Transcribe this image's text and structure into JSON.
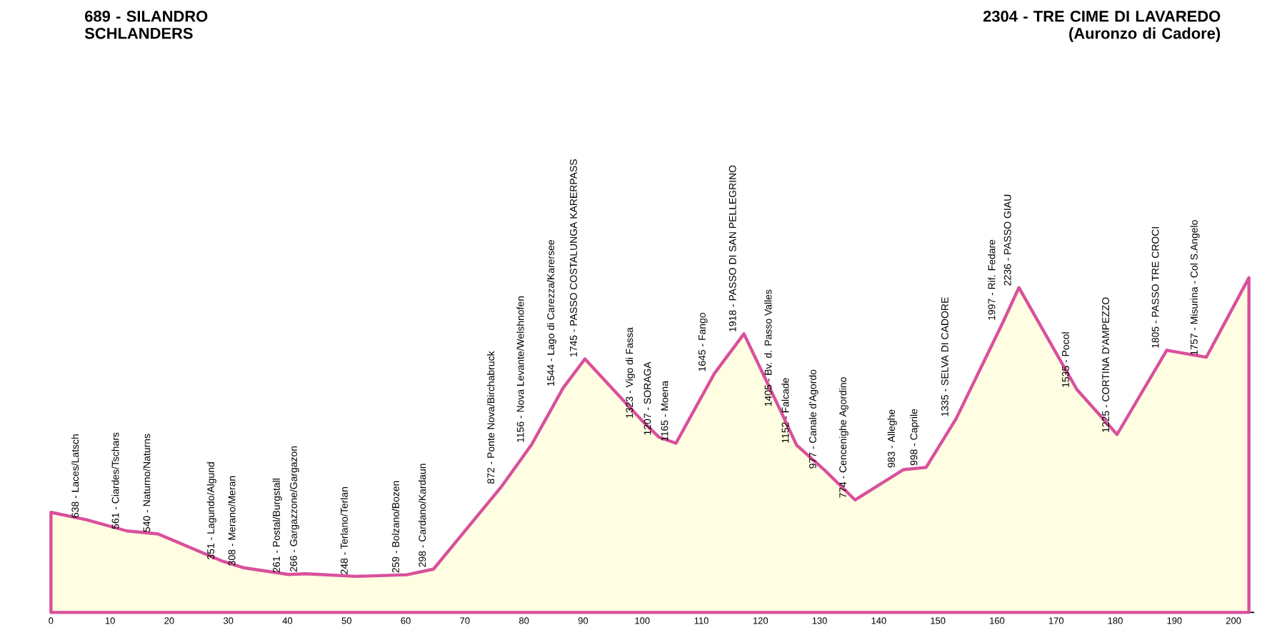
{
  "chart_data": {
    "type": "area",
    "tick_labels": "x",
    "marker": "none",
    "xlim": [
      0,
      203.5
    ],
    "xticks": [
      0,
      10,
      20,
      30,
      40,
      50,
      60,
      70,
      80,
      90,
      100,
      110,
      120,
      130,
      140,
      150,
      160,
      170,
      180,
      190,
      200
    ],
    "series": [
      {
        "color": "#d9509c",
        "x": [
          0,
          6.0,
          12.8,
          18.1,
          29.1,
          32.5,
          40.2,
          43.1,
          51.5,
          60.2,
          64.7,
          76.3,
          81.3,
          86.6,
          90.3,
          99.9,
          102.8,
          105.7,
          112.2,
          117.2,
          123.2,
          126.1,
          130.9,
          136.0,
          144.2,
          148.0,
          153.1,
          161.0,
          163.7,
          173.5,
          180.3,
          188.7,
          195.4,
          202.6
        ],
        "values": [
          689,
          638,
          561,
          540,
          351,
          308,
          261,
          266,
          248,
          259,
          298,
          872,
          1156,
          1544,
          1745,
          1323,
          1207,
          1165,
          1645,
          1918,
          1405,
          1152,
          977,
          774,
          983,
          998,
          1335,
          1997,
          2236,
          1535,
          1225,
          1805,
          1757,
          2304
        ],
        "value_labels": [
          null,
          "638 - Laces/Latsch",
          "561 - Ciardes/Tschars",
          "540 - Naturno/Naturns",
          "351 - Lagundo/Algund",
          "308 - Merano/Meran",
          "261 - Postal/Burgstall",
          "266 - Gargazzone/Gargazon",
          "248 - Terlano/Terlan",
          "259 - Bolzano/Bozen",
          "298 - Cardano/Kardaun",
          "872 - Ponte Nova/Birchabruck",
          "1156 - Nova Levante/Welshnofen",
          "1544 - Lago di Carezza/Karersee",
          "1745 - PASSO COSTALUNGA KARERPASS",
          "1323 - Vigo di Fassa",
          "1207 - SORAGA",
          "1165 - Moena",
          "1645 - Fango",
          "1918 - PASSO DI SAN PELLEGRINO",
          "1405 - Bv. d. Passo Valles",
          "1152 - Falcade",
          "977 - Canale d'Agordo",
          "774 - Cencenighe Agordino",
          "983 - Alleghe",
          "998 - Caprile",
          "1335 - SELVA DI CADORE",
          "1997 - Rif. Fedare",
          "2236 - PASSO GIAU",
          "1535 - Pocol",
          "1225 - CORTINA D'AMPEZZO",
          "1805 - PASSO TRE CROCI",
          "1757 - Misurina - Col S.Angelo",
          null
        ]
      }
    ],
    "annotations": [
      "689 - SILANDRO SCHLANDERS",
      "2304 - TRE CIME DI LAVAREDO (Auronzo di Cadore)"
    ]
  }
}
